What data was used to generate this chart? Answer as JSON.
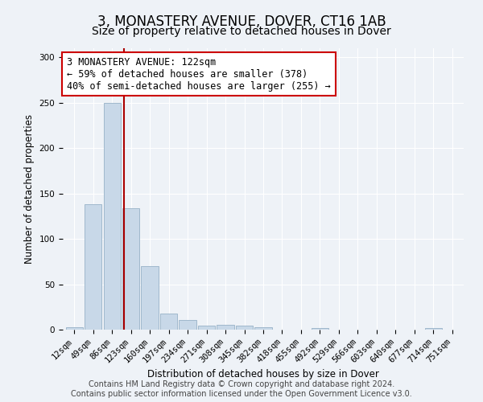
{
  "title": "3, MONASTERY AVENUE, DOVER, CT16 1AB",
  "subtitle": "Size of property relative to detached houses in Dover",
  "xlabel": "Distribution of detached houses by size in Dover",
  "ylabel": "Number of detached properties",
  "bar_labels": [
    "12sqm",
    "49sqm",
    "86sqm",
    "123sqm",
    "160sqm",
    "197sqm",
    "234sqm",
    "271sqm",
    "308sqm",
    "345sqm",
    "382sqm",
    "418sqm",
    "455sqm",
    "492sqm",
    "529sqm",
    "566sqm",
    "603sqm",
    "640sqm",
    "677sqm",
    "714sqm",
    "751sqm"
  ],
  "bar_values": [
    3,
    138,
    250,
    134,
    70,
    18,
    11,
    4,
    5,
    4,
    3,
    0,
    0,
    2,
    0,
    0,
    0,
    0,
    0,
    2,
    0
  ],
  "bar_color": "#c8d8e8",
  "bar_edgecolor": "#a0b8cc",
  "vline_x": 2.65,
  "vline_color": "#aa0000",
  "annotation_text": "3 MONASTERY AVENUE: 122sqm\n← 59% of detached houses are smaller (378)\n40% of semi-detached houses are larger (255) →",
  "annotation_box_color": "white",
  "annotation_box_edgecolor": "#cc0000",
  "ylim": [
    0,
    310
  ],
  "yticks": [
    0,
    50,
    100,
    150,
    200,
    250,
    300
  ],
  "background_color": "#eef2f7",
  "footer_text": "Contains HM Land Registry data © Crown copyright and database right 2024.\nContains public sector information licensed under the Open Government Licence v3.0.",
  "title_fontsize": 12,
  "subtitle_fontsize": 10,
  "xlabel_fontsize": 8.5,
  "ylabel_fontsize": 8.5,
  "tick_fontsize": 7.5,
  "annotation_fontsize": 8.5,
  "footer_fontsize": 7
}
